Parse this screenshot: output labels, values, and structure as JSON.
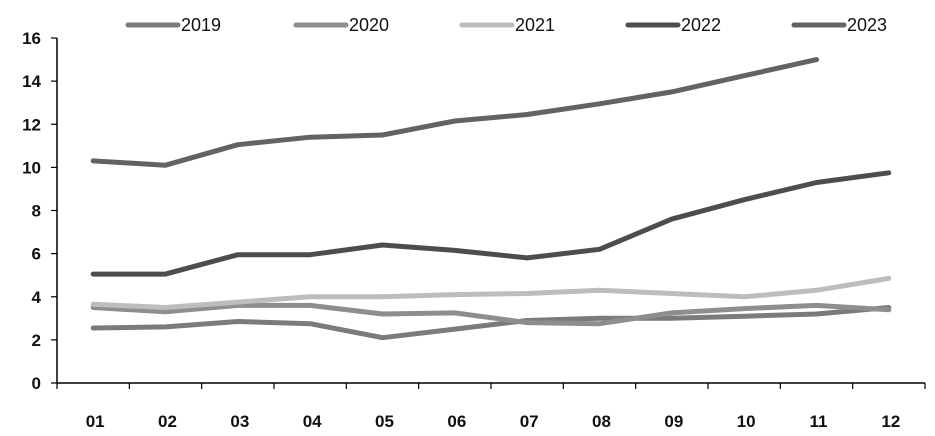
{
  "chart_data": {
    "type": "line",
    "title": "",
    "xlabel": "",
    "ylabel": "",
    "categories": [
      "01",
      "02",
      "03",
      "04",
      "05",
      "06",
      "07",
      "08",
      "09",
      "10",
      "11",
      "12"
    ],
    "ylim": [
      0,
      16
    ],
    "yticks": [
      0,
      2,
      4,
      6,
      8,
      10,
      12,
      14,
      16
    ],
    "grid": false,
    "legend_position": "top",
    "series": [
      {
        "name": "2019",
        "color": "#7b7b7b",
        "values": [
          2.55,
          2.6,
          2.85,
          2.75,
          2.1,
          2.5,
          2.9,
          3.0,
          3.0,
          3.1,
          3.2,
          3.5
        ]
      },
      {
        "name": "2020",
        "color": "#8e8e8e",
        "values": [
          3.5,
          3.3,
          3.6,
          3.6,
          3.2,
          3.25,
          2.8,
          2.75,
          3.25,
          3.45,
          3.6,
          3.4
        ]
      },
      {
        "name": "2021",
        "color": "#bdbdbd",
        "values": [
          3.65,
          3.5,
          3.75,
          4.0,
          4.0,
          4.1,
          4.15,
          4.3,
          4.15,
          4.0,
          4.3,
          4.85
        ]
      },
      {
        "name": "2022",
        "color": "#4d4d4d",
        "values": [
          5.05,
          5.05,
          5.95,
          5.95,
          6.4,
          6.15,
          5.8,
          6.2,
          7.6,
          8.5,
          9.3,
          9.75
        ]
      },
      {
        "name": "2023",
        "color": "#636363",
        "values": [
          10.3,
          10.1,
          11.05,
          11.4,
          11.5,
          12.15,
          12.45,
          12.95,
          13.5,
          14.25,
          15.0,
          null
        ]
      }
    ]
  }
}
